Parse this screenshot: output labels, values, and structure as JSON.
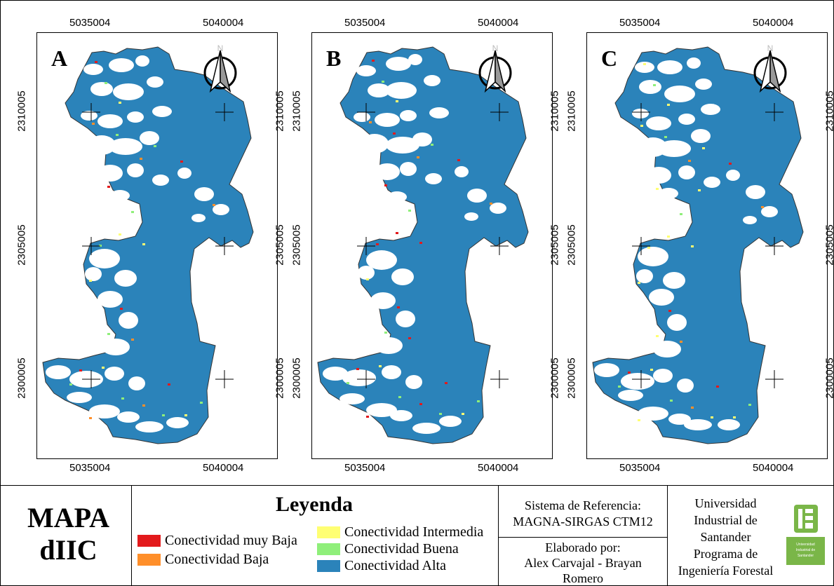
{
  "panels": [
    {
      "letter": "A",
      "variant": 0
    },
    {
      "letter": "B",
      "variant": 1
    },
    {
      "letter": "C",
      "variant": 2
    }
  ],
  "coordinates": {
    "x_left": "5035004",
    "x_right": "5040004",
    "y_top": "2310005",
    "y_mid": "2305005",
    "y_bottom": "2300005"
  },
  "north_label": "N",
  "title": {
    "line1": "MAPA",
    "line2": "dIIC"
  },
  "legend": {
    "title": "Leyenda",
    "items": [
      {
        "label": "Conectividad muy Baja",
        "color": "#e31a1c"
      },
      {
        "label": "Conectividad Baja",
        "color": "#ff8f2a"
      },
      {
        "label": "Conectividad Intermedia",
        "color": "#ffff73"
      },
      {
        "label": "Conectividad Buena",
        "color": "#8fef7a"
      },
      {
        "label": "Conectividad Alta",
        "color": "#2b83ba"
      }
    ]
  },
  "reference": {
    "label": "Sistema de Referencia:",
    "value": "MAGNA-SIRGAS CTM12"
  },
  "author": {
    "label": "Elaborado por:",
    "line1": "Alex Carvajal - Brayan",
    "line2": "Romero"
  },
  "institution": {
    "line1": "Universidad",
    "line2": "Industrial de",
    "line3": "Santander",
    "line4": "Programa de",
    "line5": "Ingeniería Forestal"
  },
  "logo": {
    "text": "Universidad Industrial de Santander",
    "color": "#7ab648"
  }
}
